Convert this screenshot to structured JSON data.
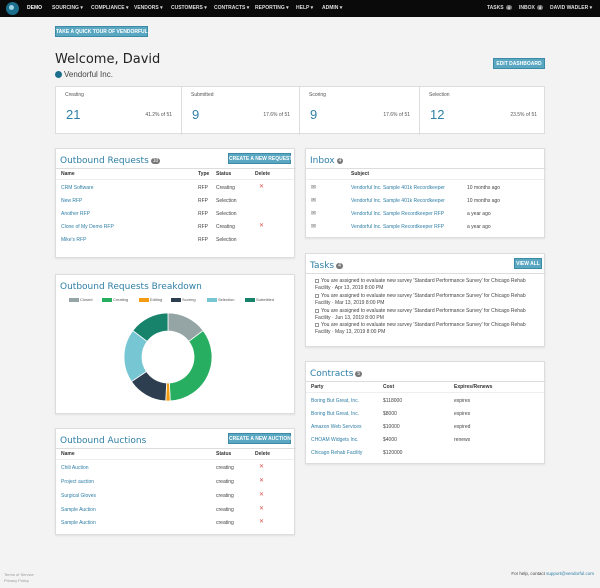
{
  "nav": {
    "brand": "DEMO",
    "menu": [
      "SOURCING ▾",
      "COMPLIANCE ▾",
      "VENDORS ▾",
      "CUSTOMERS ▾",
      "CONTRACTS ▾",
      "REPORTING ▾",
      "HELP ▾",
      "ADMIN ▾"
    ],
    "tasks_label": "TASKS",
    "tasks_count": "4",
    "inbox_label": "INBOX",
    "inbox_count": "4",
    "user_label": "DAVID WADLER ▾"
  },
  "tour_button": "TAKE A QUICK TOUR OF VENDORFUL",
  "welcome": "Welcome, David",
  "org_name": "Vendorful Inc.",
  "edit_dashboard": "EDIT DASHBOARD",
  "stats": [
    {
      "label": "Creating",
      "value": "21",
      "pct": "41.2% of 51"
    },
    {
      "label": "Submitted",
      "value": "9",
      "pct": "17.6% of 51"
    },
    {
      "label": "Scoring",
      "value": "9",
      "pct": "17.6% of 51"
    },
    {
      "label": "Selection",
      "value": "12",
      "pct": "23.5% of 51"
    }
  ],
  "outbound_requests": {
    "title": "Outbound Requests",
    "count": "10",
    "new_button": "CREATE A NEW REQUEST",
    "headers": [
      "Name",
      "Type",
      "Status",
      "Delete"
    ],
    "rows": [
      {
        "name": "CRM Software",
        "type": "RFP",
        "status": "Creating",
        "delete": true
      },
      {
        "name": "New RFP",
        "type": "RFP",
        "status": "Selection",
        "delete": false
      },
      {
        "name": "Another RFP",
        "type": "RFP",
        "status": "Selection",
        "delete": false
      },
      {
        "name": "Clone of My Demo RFP",
        "type": "RFP",
        "status": "Creating",
        "delete": true
      },
      {
        "name": "Mike's RFP",
        "type": "RFP",
        "status": "Selection",
        "delete": false
      }
    ]
  },
  "breakdown": {
    "title": "Outbound Requests Breakdown",
    "legend": [
      "Closed",
      "Creating",
      "Editing",
      "Scoring",
      "Selection",
      "Submitted"
    ]
  },
  "chart_data": {
    "type": "pie",
    "categories": [
      "Closed",
      "Creating",
      "Editing",
      "Scoring",
      "Selection",
      "Submitted"
    ],
    "values": [
      9,
      21,
      1,
      9,
      12,
      9
    ],
    "colors": [
      "#95a5a6",
      "#27ae60",
      "#f39c12",
      "#2c3e50",
      "#76c7d3",
      "#16836a"
    ],
    "legend_position": "top"
  },
  "outbound_auctions": {
    "title": "Outbound Auctions",
    "new_button": "CREATE A NEW AUCTION",
    "headers": [
      "Name",
      "Status",
      "Delete"
    ],
    "rows": [
      {
        "name": "Chili Auction",
        "status": "creating"
      },
      {
        "name": "Project auction",
        "status": "creating"
      },
      {
        "name": "Surgical Gloves",
        "status": "creating"
      },
      {
        "name": "Sample Auction",
        "status": "creating"
      },
      {
        "name": "Sample Auction",
        "status": "creating"
      }
    ]
  },
  "inbox": {
    "title": "Inbox",
    "count": "4",
    "header": "Subject",
    "rows": [
      {
        "subject": "Vendorful Inc. Sample 401k Recordkeeper",
        "time": "10 months ago"
      },
      {
        "subject": "Vendorful Inc. Sample 401k Recordkeeper",
        "time": "10 months ago"
      },
      {
        "subject": "Vendorful Inc. Sample Recordkeeper RFP",
        "time": "a year ago"
      },
      {
        "subject": "Vendorful Inc. Sample Recordkeeper RFP",
        "time": "a year ago"
      }
    ]
  },
  "tasks": {
    "title": "Tasks",
    "count": "4",
    "view_all": "VIEW ALL",
    "items": [
      {
        "line1": "You are assigned to evaluate new survey 'Standard Performance Survey' for Chicago Rehab",
        "line2": "Facility · Apr 13, 2019 8:00 PM"
      },
      {
        "line1": "You are assigned to evaluate new survey 'Standard Performance Survey' for Chicago Rehab",
        "line2": "Facility · Mar 13, 2019 8:00 PM"
      },
      {
        "line1": "You are assigned to evaluate new survey 'Standard Performance Survey' for Chicago Rehab",
        "line2": "Facility · Jun 13, 2019 8:00 PM"
      },
      {
        "line1": "You are assigned to evaluate new survey 'Standard Performance Survey' for Chicago Rehab",
        "line2": "Facility · May 13, 2019 8:00 PM"
      }
    ]
  },
  "contracts": {
    "title": "Contracts",
    "count": "5",
    "headers": [
      "Party",
      "Cost",
      "Expires/Renews"
    ],
    "rows": [
      {
        "party": "Boring But Great, Inc.",
        "cost": "$118000",
        "expires": "expires"
      },
      {
        "party": "Boring But Great, Inc.",
        "cost": "$8000",
        "expires": "expires"
      },
      {
        "party": "Amazon Web Services",
        "cost": "$10000",
        "expires": "expired"
      },
      {
        "party": "CHOAM Widgets Inc.",
        "cost": "$4000",
        "expires": "renews"
      },
      {
        "party": "Chicago Rehab Facility",
        "cost": "$120000",
        "expires": ""
      }
    ]
  },
  "footer": {
    "terms": "Terms of Service",
    "privacy": "Privacy Policy",
    "help_prefix": "For help, contact",
    "help_email": "support@vendorful.com"
  }
}
